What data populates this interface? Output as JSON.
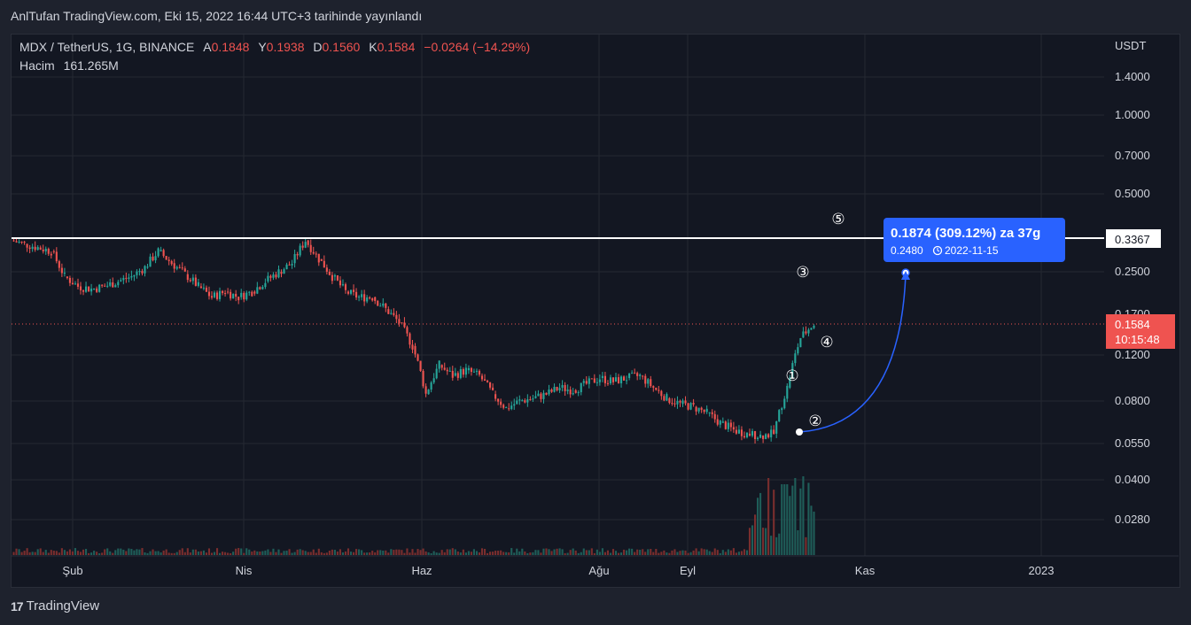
{
  "header": {
    "publish_line": "AnlTufan TradingView.com, Eki 15, 2022 16:44 UTC+3 tarihinde yayınlandı"
  },
  "legend": {
    "symbol": "MDX / TetherUS, 1G, BINANCE",
    "o_label": "A",
    "o_value": "0.1848",
    "h_label": "Y",
    "h_value": "0.1938",
    "l_label": "D",
    "l_value": "0.1560",
    "c_label": "K",
    "c_value": "0.1584",
    "change": "−0.0264 (−14.29%)",
    "volume_label": "Hacim",
    "volume_value": "161.265M"
  },
  "price_axis": {
    "unit": "USDT",
    "ticks": [
      "1.4000",
      "1.0000",
      "0.7000",
      "0.5000",
      "0.3367",
      "0.2500",
      "0.1700",
      "0.1200",
      "0.0800",
      "0.0550",
      "0.0400",
      "0.0280"
    ]
  },
  "price_badge": {
    "value": "0.1584",
    "countdown": "10:15:48"
  },
  "resistance_label": "0.3367",
  "measure_box": {
    "line1": "0.1874 (309.12%) za 37g",
    "price": "0.2480",
    "date": "2022-11-15"
  },
  "annotations": [
    "①",
    "②",
    "③",
    "④",
    "⑤"
  ],
  "time_axis": {
    "labels": [
      "Şub",
      "Nis",
      "Haz",
      "Ağu",
      "Eyl",
      "Kas",
      "2023"
    ]
  },
  "footer": {
    "brand": "TradingView",
    "logo": "17"
  },
  "colors": {
    "up": "#26a69a",
    "down": "#ef5350",
    "bg": "#131722",
    "measure": "#2962ff",
    "resistance": "#ffffff"
  },
  "chart_data": {
    "type": "candlestick",
    "symbol": "MDX / TetherUS",
    "interval": "1G",
    "exchange": "BINANCE",
    "y_scale": "log",
    "ylim": [
      0.02,
      2.0
    ],
    "resistance": 0.3367,
    "last_close": 0.1584,
    "series": [
      {
        "name": "MDX / TetherUS",
        "close_path": [
          [
            0.33,
            0.32
          ],
          [
            0.32,
            0.31
          ],
          [
            0.31,
            0.3
          ],
          [
            0.3,
            0.24
          ],
          [
            0.24,
            0.22
          ],
          [
            0.22,
            0.215
          ],
          [
            0.215,
            0.22
          ],
          [
            0.22,
            0.23
          ],
          [
            0.23,
            0.24
          ],
          [
            0.24,
            0.26
          ],
          [
            0.26,
            0.3
          ],
          [
            0.3,
            0.27
          ],
          [
            0.27,
            0.245
          ],
          [
            0.245,
            0.22
          ],
          [
            0.22,
            0.2
          ],
          [
            0.2,
            0.21
          ],
          [
            0.21,
            0.2
          ],
          [
            0.2,
            0.21
          ],
          [
            0.21,
            0.23
          ],
          [
            0.23,
            0.25
          ],
          [
            0.25,
            0.27
          ],
          [
            0.27,
            0.33
          ],
          [
            0.33,
            0.28
          ],
          [
            0.28,
            0.24
          ],
          [
            0.24,
            0.21
          ],
          [
            0.21,
            0.2
          ],
          [
            0.2,
            0.2
          ],
          [
            0.2,
            0.18
          ],
          [
            0.18,
            0.16
          ],
          [
            0.16,
            0.13
          ],
          [
            0.13,
            0.085
          ],
          [
            0.085,
            0.11
          ],
          [
            0.11,
            0.1
          ],
          [
            0.1,
            0.105
          ],
          [
            0.105,
            0.1
          ],
          [
            0.1,
            0.085
          ],
          [
            0.085,
            0.075
          ],
          [
            0.075,
            0.08
          ],
          [
            0.08,
            0.082
          ],
          [
            0.082,
            0.085
          ],
          [
            0.085,
            0.09
          ],
          [
            0.09,
            0.088
          ],
          [
            0.088,
            0.093
          ],
          [
            0.093,
            0.098
          ],
          [
            0.098,
            0.095
          ],
          [
            0.095,
            0.098
          ],
          [
            0.098,
            0.1
          ],
          [
            0.1,
            0.09
          ],
          [
            0.09,
            0.082
          ],
          [
            0.082,
            0.078
          ],
          [
            0.078,
            0.076
          ],
          [
            0.076,
            0.072
          ],
          [
            0.072,
            0.066
          ],
          [
            0.066,
            0.062
          ],
          [
            0.062,
            0.06
          ],
          [
            0.06,
            0.059
          ],
          [
            0.059,
            0.06
          ],
          [
            0.06,
            0.09
          ],
          [
            0.09,
            0.14
          ],
          [
            0.14,
            0.1584
          ]
        ]
      }
    ],
    "measurement": {
      "from_price": 0.0606,
      "to_price": 0.248,
      "change": 0.1874,
      "change_pct": 309.12,
      "bars": 37,
      "to_date": "2022-11-15"
    },
    "x_labels": [
      "Şub",
      "Nis",
      "Haz",
      "Ağu",
      "Eyl",
      "Kas",
      "2023"
    ]
  }
}
